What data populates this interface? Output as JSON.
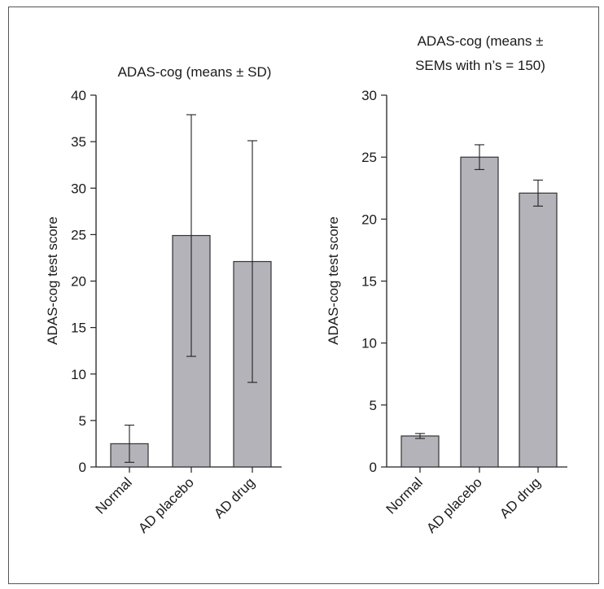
{
  "chart_data": [
    {
      "type": "bar",
      "title": "ADAS-cog (means ± SD)",
      "ylabel": "ADAS-cog test score",
      "xlabel": "",
      "categories": [
        "Normal",
        "AD placebo",
        "AD drug"
      ],
      "values": [
        2.5,
        24.9,
        22.1
      ],
      "errors": [
        2.0,
        13.0,
        13.0
      ],
      "ylim": [
        0,
        40
      ],
      "yticks": [
        0,
        5,
        10,
        15,
        20,
        25,
        30,
        35,
        40
      ],
      "grid": false,
      "bar_color": "#b3b3b9"
    },
    {
      "type": "bar",
      "title": "ADAS-cog (means ± SEMs with n’s = 150)",
      "title_lines": [
        "ADAS-cog (means ±",
        "SEMs with n’s = 150)"
      ],
      "ylabel": "ADAS-cog test score",
      "xlabel": "",
      "categories": [
        "Normal",
        "AD placebo",
        "AD drug"
      ],
      "values": [
        2.5,
        25.0,
        22.1
      ],
      "errors": [
        0.2,
        1.0,
        1.05
      ],
      "ylim": [
        0,
        30
      ],
      "yticks": [
        0,
        5,
        10,
        15,
        20,
        25,
        30
      ],
      "grid": false,
      "bar_color": "#b3b3b9"
    }
  ]
}
